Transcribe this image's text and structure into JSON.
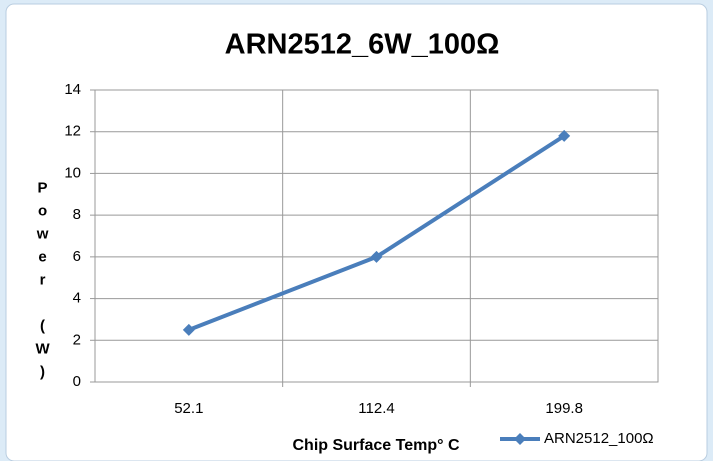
{
  "chart_data": {
    "type": "line",
    "title": "ARN2512_6W_100Ω",
    "x_label": "Chip Surface Temp° C",
    "y_label": "Power (W)",
    "categories": [
      "52.1",
      "112.4",
      "199.8"
    ],
    "series": [
      {
        "name": "ARN2512_100Ω",
        "color": "#4a7ebb",
        "values": [
          2.5,
          6,
          11.8
        ]
      }
    ],
    "ylim": [
      0,
      14
    ],
    "yticks": [
      0,
      2,
      4,
      6,
      8,
      10,
      12,
      14
    ],
    "grid": true,
    "legend": "bottom-right"
  }
}
